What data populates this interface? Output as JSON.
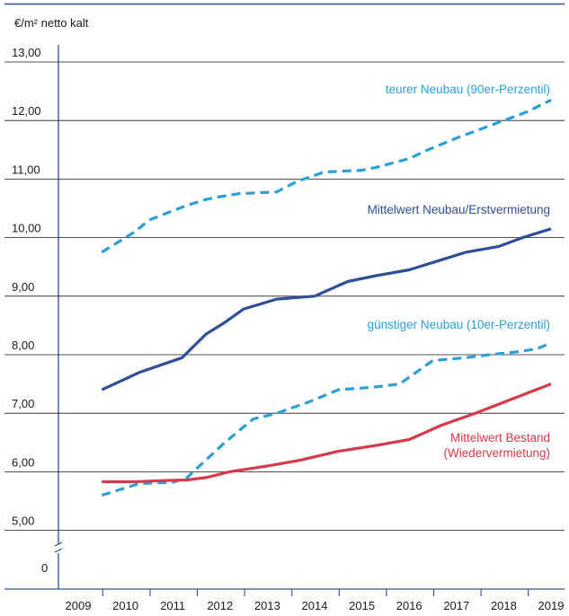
{
  "chart_data": {
    "type": "line",
    "title": "",
    "ylabel": "€/m² netto kalt",
    "xlabel": "",
    "ylim": [
      5,
      13
    ],
    "y_ticks": [
      "13,00",
      "12,00",
      "11,00",
      "10,00",
      "9,00",
      "8,00",
      "7,00",
      "6,00",
      "5,00",
      "0"
    ],
    "y_tick_values": [
      13,
      12,
      11,
      10,
      9,
      8,
      7,
      6,
      5
    ],
    "y_zero_label": "0",
    "y_axis_break": true,
    "x_ticks": [
      "2009",
      "2010",
      "2011",
      "2012",
      "2013",
      "2014",
      "2015",
      "2016",
      "2017",
      "2018",
      "2019"
    ],
    "grid": "horizontal",
    "series": [
      {
        "name": "teurer Neubau (90er-Perzentil)",
        "style": "dashed",
        "color": "#2b9fd6",
        "x": [
          2009.5,
          2010.2,
          2010.5,
          2011.3,
          2011.7,
          2012.0,
          2012.4,
          2013.2,
          2013.6,
          2014.2,
          2015.0,
          2015.3,
          2016.0,
          2016.4,
          2017.0,
          2017.5,
          2018.0,
          2018.5,
          2019.0
        ],
        "y": [
          9.75,
          10.1,
          10.3,
          10.55,
          10.65,
          10.7,
          10.75,
          10.78,
          10.95,
          11.12,
          11.15,
          11.2,
          11.35,
          11.5,
          11.7,
          11.85,
          12.0,
          12.15,
          12.35
        ]
      },
      {
        "name": "Mittelwert Neubau/Erstvermietung",
        "style": "solid",
        "color": "#2e4f95",
        "x": [
          2009.5,
          2010.3,
          2011.2,
          2011.7,
          2012.1,
          2012.5,
          2013.2,
          2014.0,
          2014.7,
          2015.3,
          2016.0,
          2016.6,
          2017.2,
          2017.9,
          2018.4,
          2018.6,
          2019.0
        ],
        "y": [
          7.4,
          7.7,
          7.95,
          8.35,
          8.55,
          8.78,
          8.95,
          9.0,
          9.25,
          9.35,
          9.45,
          9.6,
          9.75,
          9.85,
          10.0,
          10.05,
          10.15
        ]
      },
      {
        "name": "günstiger Neubau (10er-Perzentil)",
        "style": "dashed",
        "color": "#2b9fd6",
        "x": [
          2009.5,
          2009.9,
          2010.3,
          2011.0,
          2011.3,
          2011.7,
          2012.1,
          2012.7,
          2013.2,
          2013.9,
          2014.5,
          2015.3,
          2015.8,
          2016.5,
          2017.2,
          2017.7,
          2018.3,
          2018.7,
          2019.0
        ],
        "y": [
          5.6,
          5.7,
          5.8,
          5.82,
          5.9,
          6.2,
          6.5,
          6.9,
          7.0,
          7.2,
          7.4,
          7.45,
          7.5,
          7.9,
          7.95,
          8.0,
          8.05,
          8.1,
          8.2
        ],
        "label_lines": [
          "günstiger Neubau (10er-Perzentil)"
        ]
      },
      {
        "name": "Mittelwert Bestand (Wiedervermietung)",
        "style": "solid",
        "color": "#d63a4a",
        "x": [
          2009.5,
          2010.2,
          2010.8,
          2011.3,
          2011.7,
          2012.2,
          2013.0,
          2013.7,
          2014.5,
          2015.3,
          2016.0,
          2016.7,
          2017.4,
          2018.2,
          2019.0
        ],
        "y": [
          5.83,
          5.83,
          5.85,
          5.86,
          5.9,
          6.0,
          6.1,
          6.2,
          6.35,
          6.45,
          6.55,
          6.8,
          7.0,
          7.25,
          7.5
        ]
      }
    ],
    "series_labels": [
      {
        "lines": [
          "teurer Neubau (90er-Perzentil)"
        ],
        "color": "#2b9fd6"
      },
      {
        "lines": [
          "Mittelwert Neubau/Erstvermietung"
        ],
        "color": "#2e4f95"
      },
      {
        "lines": [
          "günstiger Neubau (10er-Perzentil)"
        ],
        "color": "#2b9fd6"
      },
      {
        "lines": [
          "Mittelwert Bestand",
          "(Wiedervermietung)"
        ],
        "color": "#d63a4a"
      }
    ],
    "colors": {
      "axis": "#2e4f95",
      "grid": "#1a1a1a",
      "top_rule": "#2e4f95"
    }
  }
}
